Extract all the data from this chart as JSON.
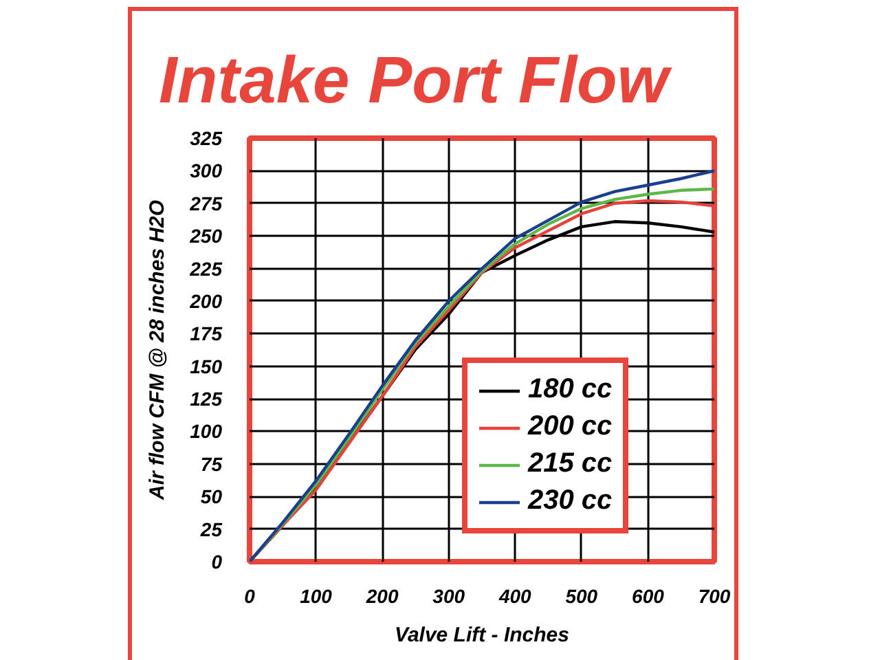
{
  "chart_data": {
    "type": "line",
    "title": "Intake Port Flow",
    "xlabel": "Valve Lift - Inches",
    "ylabel": "Air flow CFM @ 28 inches H2O",
    "x": [
      0,
      50,
      100,
      150,
      200,
      250,
      300,
      350,
      400,
      450,
      500,
      550,
      600,
      650,
      700
    ],
    "series": [
      {
        "name": "180 cc",
        "color": "#000000",
        "values": [
          0,
          28,
          57,
          92,
          127,
          163,
          190,
          222,
          235,
          247,
          257,
          261,
          260,
          257,
          253
        ]
      },
      {
        "name": "200 cc",
        "color": "#e8413c",
        "values": [
          0,
          28,
          55,
          91,
          127,
          165,
          193,
          222,
          241,
          254,
          267,
          275,
          277,
          276,
          273
        ]
      },
      {
        "name": "215 cc",
        "color": "#5cb847",
        "values": [
          0,
          29,
          59,
          95,
          132,
          168,
          196,
          223,
          244,
          259,
          271,
          278,
          282,
          285,
          286
        ]
      },
      {
        "name": "230 cc",
        "color": "#1a3f8f",
        "values": [
          0,
          30,
          62,
          98,
          135,
          170,
          200,
          225,
          248,
          262,
          276,
          284,
          289,
          294,
          300
        ]
      }
    ],
    "xlim": [
      0,
      700
    ],
    "ylim": [
      0,
      325
    ],
    "xticks": [
      0,
      100,
      200,
      300,
      400,
      500,
      600,
      700
    ],
    "yticks": [
      0,
      25,
      50,
      75,
      100,
      125,
      150,
      175,
      200,
      225,
      250,
      275,
      300,
      325
    ],
    "grid": true,
    "legend": "bottom right"
  }
}
